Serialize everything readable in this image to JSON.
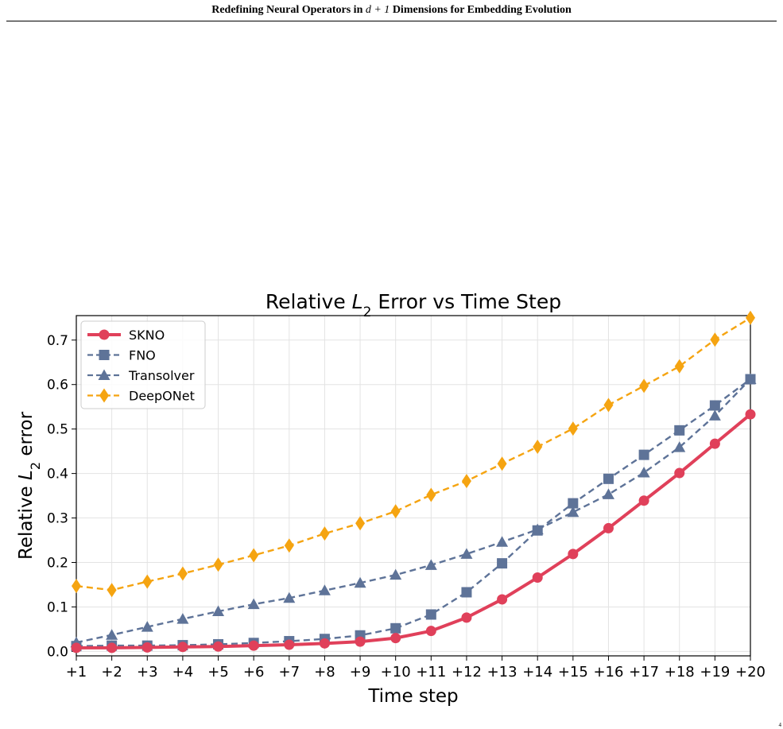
{
  "header": {
    "title_prefix": "Redefining Neural Operators in ",
    "title_math": "d + 1",
    "title_suffix": " Dimensions for Embedding Evolution"
  },
  "page_number": "4",
  "chart_data": {
    "type": "line",
    "title_prefix": "Relative ",
    "title_var": "L",
    "title_sub": "2",
    "title_suffix": " Error vs Time Step",
    "xlabel": "Time step",
    "ylabel_prefix": "Relative ",
    "ylabel_var": "L",
    "ylabel_sub": "2",
    "ylabel_suffix": " error",
    "categories": [
      "+1",
      "+2",
      "+3",
      "+4",
      "+5",
      "+6",
      "+7",
      "+8",
      "+9",
      "+10",
      "+11",
      "+12",
      "+13",
      "+14",
      "+15",
      "+16",
      "+17",
      "+18",
      "+19",
      "+20"
    ],
    "ylim": [
      -0.01,
      0.755
    ],
    "yticks": [
      "0.0",
      "0.1",
      "0.2",
      "0.3",
      "0.4",
      "0.5",
      "0.6",
      "0.7"
    ],
    "grid": true,
    "legend_position": "top-left",
    "series": [
      {
        "name": "SKNO",
        "color": "#e0405a",
        "marker": "circle",
        "dash": "solid",
        "values": [
          0.008,
          0.008,
          0.009,
          0.01,
          0.011,
          0.013,
          0.015,
          0.018,
          0.022,
          0.03,
          0.046,
          0.076,
          0.117,
          0.166,
          0.219,
          0.277,
          0.339,
          0.401,
          0.467,
          0.533
        ]
      },
      {
        "name": "FNO",
        "color": "#5e7398",
        "marker": "square",
        "dash": "dashed",
        "values": [
          0.012,
          0.013,
          0.013,
          0.014,
          0.016,
          0.019,
          0.023,
          0.028,
          0.036,
          0.052,
          0.083,
          0.133,
          0.198,
          0.272,
          0.333,
          0.388,
          0.442,
          0.497,
          0.553,
          0.612
        ]
      },
      {
        "name": "Transolver",
        "color": "#5e7398",
        "marker": "triangle",
        "dash": "dashed",
        "values": [
          0.02,
          0.037,
          0.055,
          0.073,
          0.09,
          0.106,
          0.12,
          0.137,
          0.154,
          0.172,
          0.194,
          0.219,
          0.246,
          0.274,
          0.313,
          0.353,
          0.402,
          0.459,
          0.53,
          0.612
        ]
      },
      {
        "name": "DeepONet",
        "color": "#f5a411",
        "marker": "diamond",
        "dash": "dashed",
        "values": [
          0.147,
          0.138,
          0.157,
          0.175,
          0.195,
          0.216,
          0.238,
          0.265,
          0.288,
          0.315,
          0.352,
          0.383,
          0.422,
          0.46,
          0.501,
          0.554,
          0.597,
          0.641,
          0.701,
          0.75
        ]
      }
    ]
  }
}
